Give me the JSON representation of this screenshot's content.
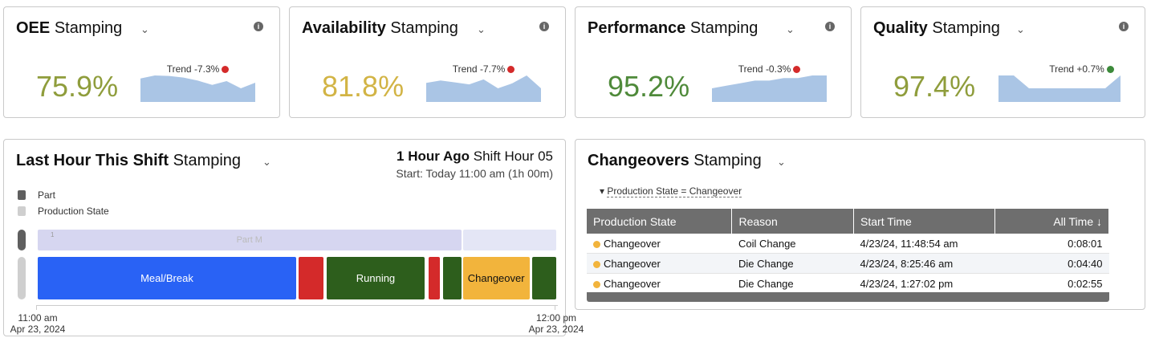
{
  "kpis": [
    {
      "title": "OEE",
      "context": "Stamping",
      "value": "75.9%",
      "color": "#8f9d3c",
      "trend": "Trend -7.3%",
      "trend_color": "#d42a2a",
      "sparkline": [
        77,
        78.2,
        78,
        77.4,
        76.2,
        74.5,
        76,
        73.2,
        75.4
      ]
    },
    {
      "title": "Availability",
      "context": "Stamping",
      "value": "81.8%",
      "color": "#d2b445",
      "trend": "Trend -7.7%",
      "trend_color": "#d42a2a",
      "sparkline": [
        83.5,
        84,
        83.6,
        83.2,
        84.2,
        82.4,
        83.4,
        85,
        82.4
      ]
    },
    {
      "title": "Performance",
      "context": "Stamping",
      "value": "95.2%",
      "color": "#4f8a3a",
      "trend": "Trend -0.3%",
      "trend_color": "#d42a2a",
      "sparkline": [
        95,
        95.1,
        95.2,
        95.3,
        95.3,
        95.4,
        95.4,
        95.5,
        95.5
      ]
    },
    {
      "title": "Quality",
      "context": "Stamping",
      "value": "97.4%",
      "color": "#8f9d3c",
      "trend": "Trend +0.7%",
      "trend_color": "#3c8a3a",
      "sparkline": [
        97.5,
        97.5,
        97.4,
        97.4,
        97.4,
        97.4,
        97.4,
        97.4,
        97.5
      ]
    }
  ],
  "timeline": {
    "title": "Last Hour This Shift",
    "context": "Stamping",
    "period": "1 Hour Ago",
    "shift": "Shift Hour 05",
    "start": "Start: Today 11:00 am (1h 00m)",
    "legend": [
      {
        "label": "Part",
        "color": "#5f5f5f"
      },
      {
        "label": "Production State",
        "color": "#cfcfcf"
      }
    ],
    "parts": [
      {
        "label": "Part M",
        "count": "1",
        "color": "#d6d6f0",
        "start": 0,
        "end": 49
      },
      {
        "label": null,
        "count": null,
        "color": "#e4e6f6",
        "start": 49.2,
        "end": 60
      }
    ],
    "states": [
      {
        "label": "Meal/Break",
        "color": "#2962f5",
        "start": 0,
        "end": 29.9
      },
      {
        "label": null,
        "color": "#d42a2a",
        "start": 30.2,
        "end": 33.1
      },
      {
        "label": "Running",
        "color": "#2d5e1c",
        "start": 33.4,
        "end": 44.8
      },
      {
        "label": null,
        "color": "#d42a2a",
        "start": 45.2,
        "end": 46.5
      },
      {
        "label": null,
        "color": "#2d5e1c",
        "start": 46.9,
        "end": 49
      },
      {
        "label": "Changeover",
        "color": "#f2b43c",
        "start": 49.2,
        "end": 56.9
      },
      {
        "label": null,
        "color": "#2d5e1c",
        "start": 57.2,
        "end": 60
      }
    ],
    "axis": [
      {
        "time": "11:00 am",
        "date": "Apr 23, 2024"
      },
      {
        "time": "12:00 pm",
        "date": "Apr 23, 2024"
      }
    ]
  },
  "changeovers": {
    "title": "Changeovers",
    "context": "Stamping",
    "filter": "Production State = Changeover",
    "columns": [
      "Production State",
      "Reason",
      "Start Time",
      "All Time ↓"
    ],
    "rows": [
      [
        "Changeover",
        "Coil Change",
        "4/23/24, 11:48:54 am",
        "0:08:01"
      ],
      [
        "Changeover",
        "Die Change",
        "4/23/24, 8:25:46 am",
        "0:04:40"
      ],
      [
        "Changeover",
        "Die Change",
        "4/23/24, 1:27:02 pm",
        "0:02:55"
      ]
    ],
    "state_color": "#f2b43c"
  }
}
